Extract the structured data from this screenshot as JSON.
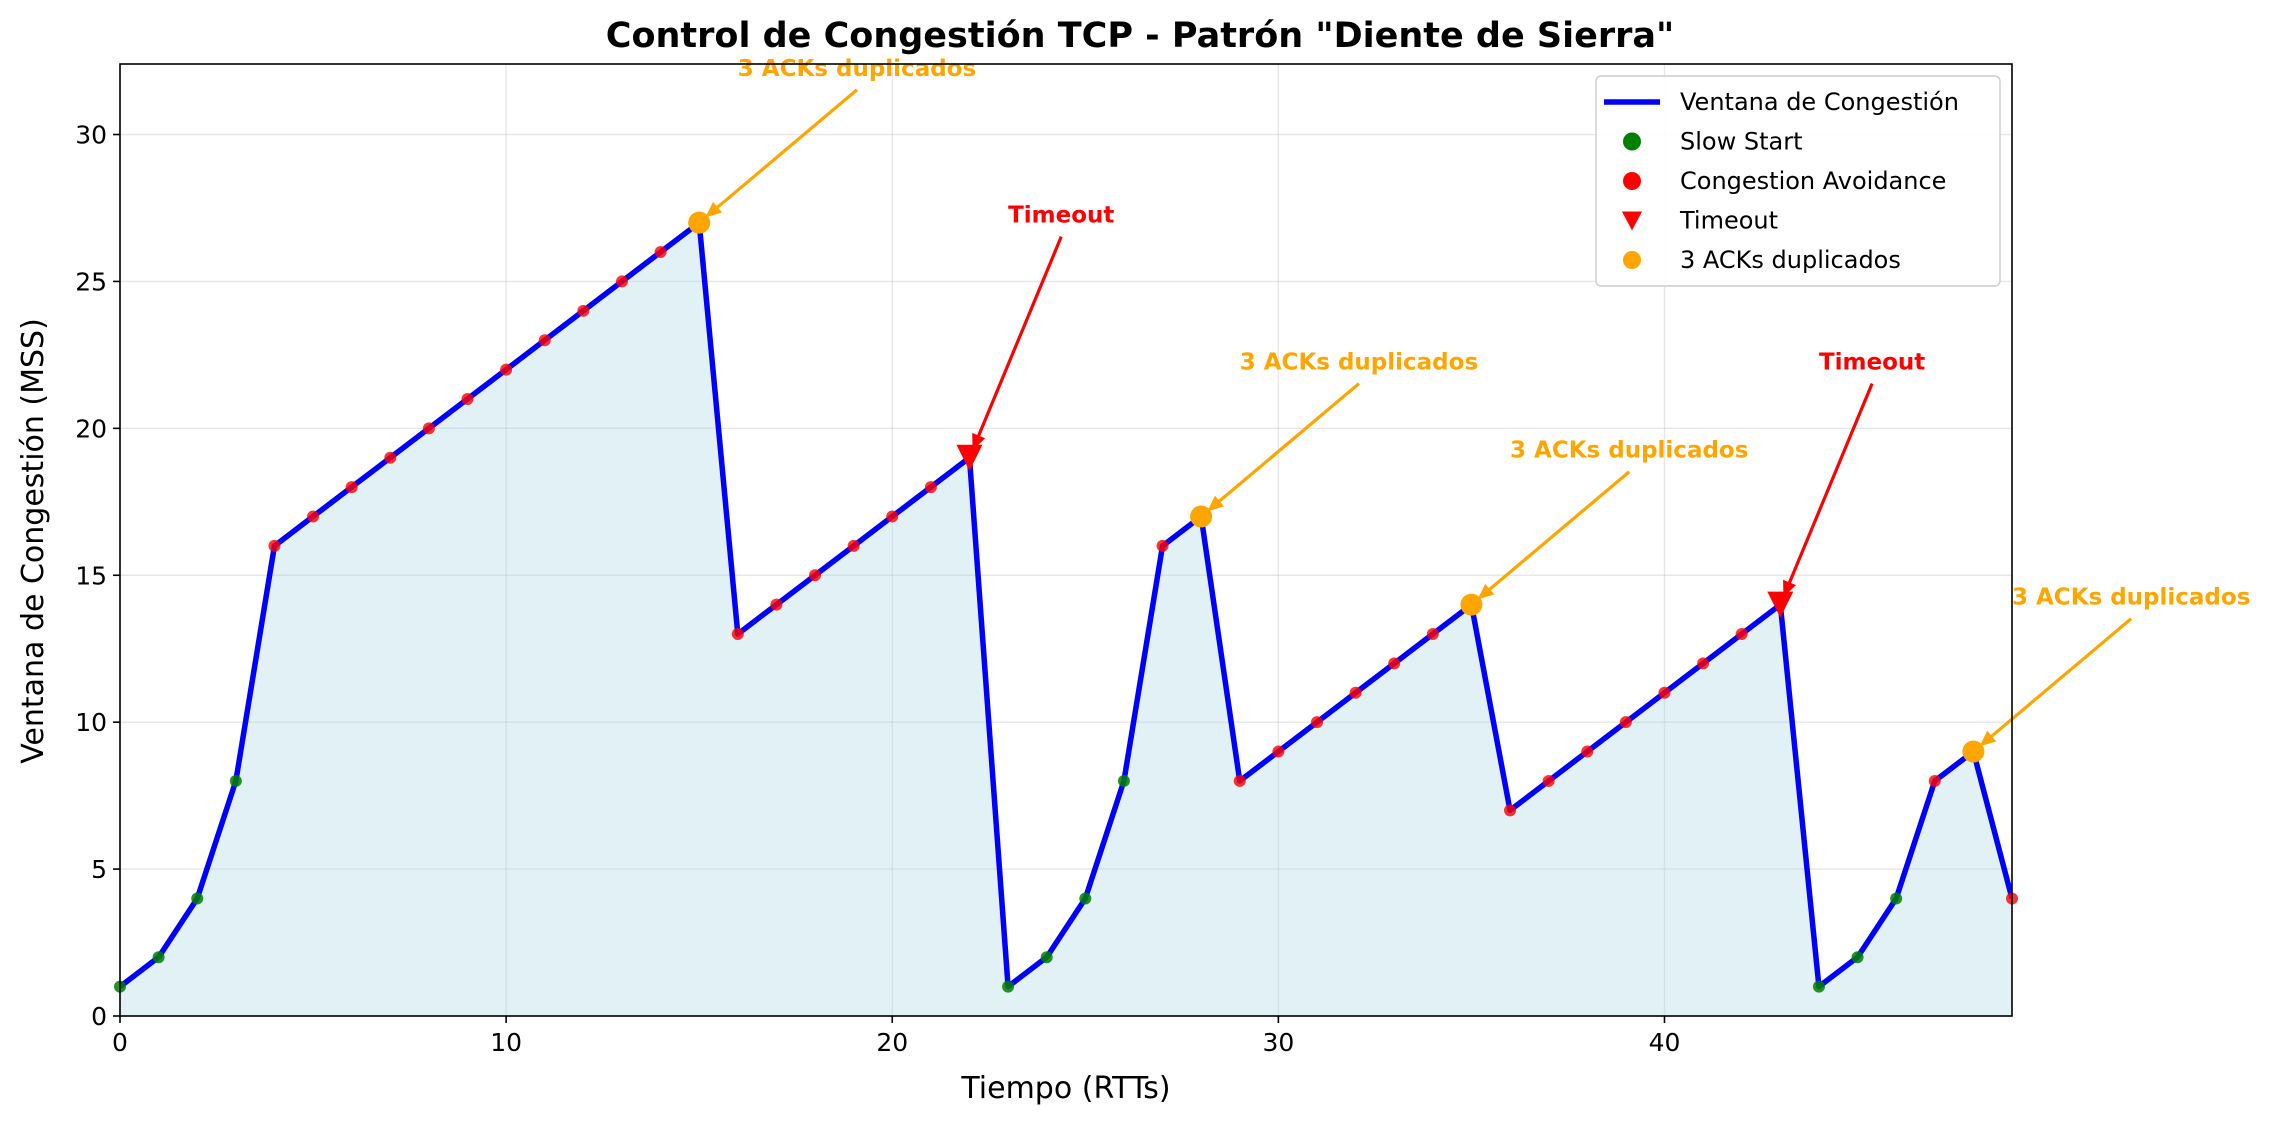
{
  "chart_data": {
    "type": "line",
    "title": "Control de Congestión TCP - Patrón \"Diente de Sierra\"",
    "xlabel": "Tiempo (RTTs)",
    "ylabel": "Ventana de Congestión (MSS)",
    "xlim": [
      0,
      49
    ],
    "ylim": [
      0,
      32.4
    ],
    "xticks": [
      0,
      10,
      20,
      30,
      40
    ],
    "yticks": [
      0,
      5,
      10,
      15,
      20,
      25,
      30
    ],
    "grid": true,
    "legend_position": "top-right",
    "fill_color": "#add8e6",
    "series": [
      {
        "name": "Ventana de Congestión",
        "color": "#0000ff",
        "x": [
          0,
          1,
          2,
          3,
          4,
          5,
          6,
          7,
          8,
          9,
          10,
          11,
          12,
          13,
          14,
          15,
          16,
          17,
          18,
          19,
          20,
          21,
          22,
          23,
          24,
          25,
          26,
          27,
          28,
          29,
          30,
          31,
          32,
          33,
          34,
          35,
          36,
          37,
          38,
          39,
          40,
          41,
          42,
          43,
          44,
          45,
          46,
          47,
          48,
          49
        ],
        "y": [
          1,
          2,
          4,
          8,
          16,
          17,
          18,
          19,
          20,
          21,
          22,
          23,
          24,
          25,
          26,
          27,
          13,
          14,
          15,
          16,
          17,
          18,
          19,
          1,
          2,
          4,
          8,
          16,
          17,
          8,
          9,
          10,
          11,
          12,
          13,
          14,
          7,
          8,
          9,
          10,
          11,
          12,
          13,
          14,
          1,
          2,
          4,
          8,
          9,
          4
        ]
      }
    ],
    "phases": {
      "slow_start": {
        "name": "Slow Start",
        "color": "#008000",
        "x": [
          0,
          1,
          2,
          3,
          23,
          24,
          25,
          26,
          44,
          45,
          46
        ]
      },
      "congestion_avoidance": {
        "name": "Congestion Avoidance",
        "color": "#ff0000",
        "x": [
          4,
          5,
          6,
          7,
          8,
          9,
          10,
          11,
          12,
          13,
          14,
          16,
          17,
          18,
          19,
          20,
          21,
          27,
          29,
          30,
          31,
          32,
          33,
          34,
          36,
          37,
          38,
          39,
          40,
          41,
          42,
          47,
          49
        ]
      }
    },
    "events": {
      "timeout": {
        "name": "Timeout",
        "color": "#ff0000",
        "x": [
          22,
          43
        ]
      },
      "triple_ack": {
        "name": "3 ACKs duplicados",
        "color": "#ffa500",
        "x": [
          15,
          28,
          35,
          48
        ]
      }
    },
    "annotations": [
      {
        "text": "3 ACKs duplicados",
        "color": "#ffa500",
        "x": 15,
        "y": 27,
        "text_x": 16,
        "text_y": 32
      },
      {
        "text": "Timeout",
        "color": "#ff0000",
        "x": 22,
        "y": 19,
        "text_x": 23,
        "text_y": 27
      },
      {
        "text": "3 ACKs duplicados",
        "color": "#ffa500",
        "x": 28,
        "y": 17,
        "text_x": 29,
        "text_y": 22
      },
      {
        "text": "3 ACKs duplicados",
        "color": "#ffa500",
        "x": 35,
        "y": 14,
        "text_x": 36,
        "text_y": 19
      },
      {
        "text": "Timeout",
        "color": "#ff0000",
        "x": 43,
        "y": 14,
        "text_x": 44,
        "text_y": 22
      },
      {
        "text": "3 ACKs duplicados",
        "color": "#ffa500",
        "x": 48,
        "y": 9,
        "text_x": 49,
        "text_y": 14
      }
    ],
    "legend": [
      {
        "label": "Ventana de Congestión",
        "marker": "line",
        "color": "#0000ff"
      },
      {
        "label": "Slow Start",
        "marker": "circle",
        "color": "#008000"
      },
      {
        "label": "Congestion Avoidance",
        "marker": "circle",
        "color": "#ff0000"
      },
      {
        "label": "Timeout",
        "marker": "triangle-down",
        "color": "#ff0000"
      },
      {
        "label": "3 ACKs duplicados",
        "marker": "circle",
        "color": "#ffa500"
      }
    ]
  }
}
